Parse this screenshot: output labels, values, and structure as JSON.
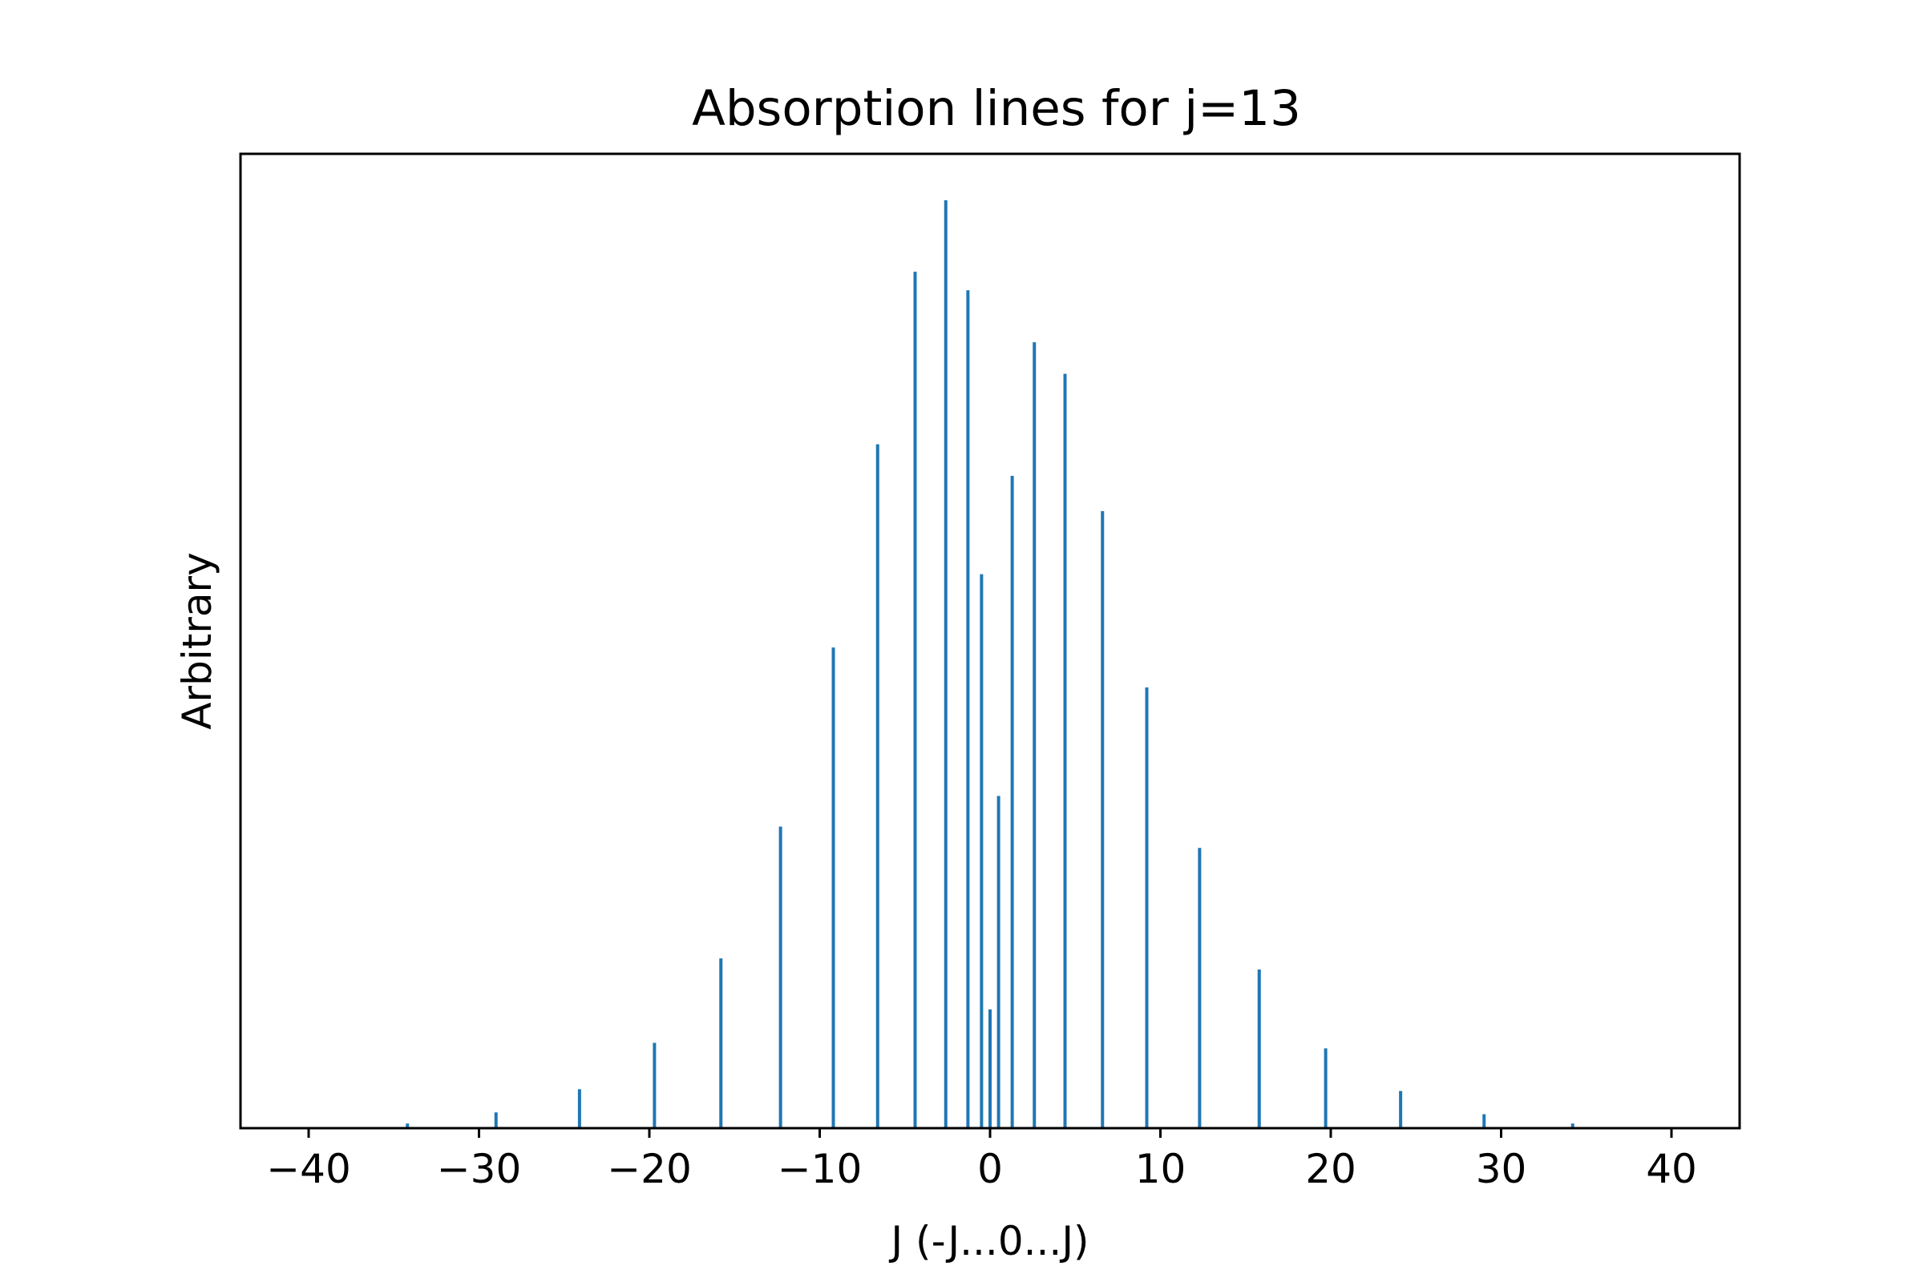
{
  "chart_data": {
    "type": "bar",
    "title": "Absorption lines for j=13",
    "xlabel": "J (-J...0...J)",
    "ylabel": "Arbitrary",
    "xlim": [
      -44,
      44
    ],
    "ylim": [
      0,
      1.05
    ],
    "x_ticks": [
      "−40",
      "−30",
      "−20",
      "−10",
      "0",
      "10",
      "20",
      "30",
      "40"
    ],
    "y_ticks_visible": false,
    "grid": false,
    "legend": "none",
    "series": [
      {
        "color": "#1f77b4",
        "x": [
          -34.2,
          -29.0,
          -24.1,
          -19.7,
          -15.8,
          -12.3,
          -9.2,
          -6.6,
          -4.4,
          -2.6,
          -1.3,
          -0.5,
          0.0,
          0.5,
          1.3,
          2.6,
          4.4,
          6.6,
          9.2,
          12.3,
          15.8,
          19.7,
          24.1,
          29.0,
          34.2
        ],
        "values": [
          0.005,
          0.017,
          0.042,
          0.092,
          0.183,
          0.325,
          0.518,
          0.737,
          0.923,
          1.0,
          0.903,
          0.597,
          0.128,
          0.358,
          0.703,
          0.847,
          0.813,
          0.665,
          0.475,
          0.302,
          0.171,
          0.086,
          0.04,
          0.015,
          0.005
        ]
      }
    ]
  }
}
